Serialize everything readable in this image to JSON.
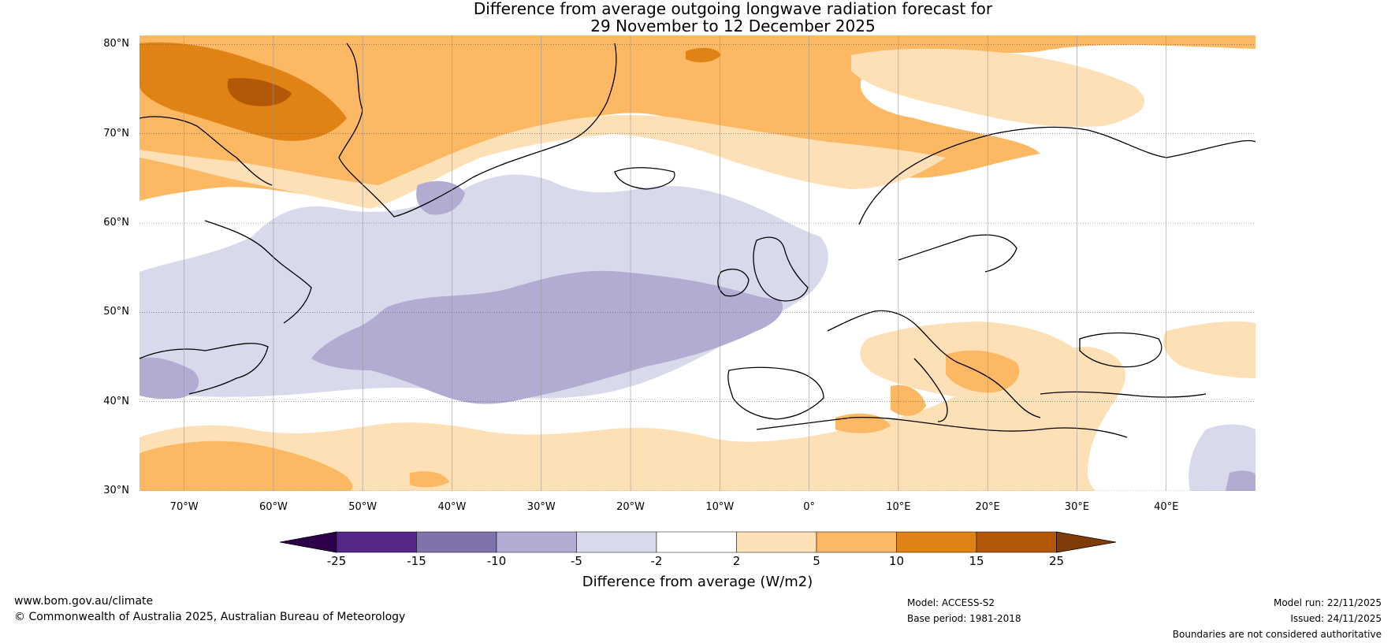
{
  "title": {
    "line1": "Difference from average outgoing longwave radiation forecast for",
    "line2": "29 November to 12 December 2025"
  },
  "latitude_labels": [
    "80°N",
    "70°N",
    "60°N",
    "50°N",
    "40°N",
    "30°N"
  ],
  "longitude_labels": [
    "70°W",
    "60°W",
    "50°W",
    "40°W",
    "30°W",
    "20°W",
    "10°W",
    "0°",
    "10°E",
    "20°E",
    "30°E",
    "40°E"
  ],
  "map_extent": {
    "lon_min": -75,
    "lon_max": 50,
    "lat_min": 30,
    "lat_max": 81
  },
  "anomaly_regions": [
    {
      "class": "10 to 15",
      "description": "Greenland interior / Baffin"
    },
    {
      "class": "5 to 10",
      "description": "Arctic Ocean, Greenland Sea, Barents Sea"
    },
    {
      "class": "2 to 5",
      "description": "Svalbard, subtropical Atlantic, Mediterranean, Balkans"
    },
    {
      "class": "-5 to -2",
      "description": "North Atlantic"
    },
    {
      "class": "-10 to -5",
      "description": "Central North Atlantic"
    }
  ],
  "colorbar": {
    "ticks": [
      "-25",
      "-15",
      "-10",
      "-5",
      "-2",
      "2",
      "5",
      "10",
      "15",
      "25"
    ],
    "bins": [
      {
        "range": "< -25",
        "color": "#2d004b"
      },
      {
        "range": "-25 to -15",
        "color": "#542788"
      },
      {
        "range": "-15 to -10",
        "color": "#8073ac"
      },
      {
        "range": "-10 to -5",
        "color": "#b2abd2"
      },
      {
        "range": "-5 to -2",
        "color": "#d8daeb"
      },
      {
        "range": "-2 to 2",
        "color": "#ffffff"
      },
      {
        "range": "2 to 5",
        "color": "#fee0b6"
      },
      {
        "range": "5 to 10",
        "color": "#fdb863"
      },
      {
        "range": "10 to 15",
        "color": "#e08214"
      },
      {
        "range": "15 to 25",
        "color": "#b35806"
      },
      {
        "range": "> 25",
        "color": "#7f3b08"
      }
    ],
    "label": "Difference from average (W/m2)"
  },
  "footer": {
    "website": "www.bom.gov.au/climate",
    "copyright": "© Commonwealth of Australia 2025, Australian Bureau of Meteorology",
    "model": "Model: ACCESS-S2",
    "base_period": "Base period: 1981-2018",
    "model_run": "Model run: 22/11/2025",
    "issued": "Issued: 24/11/2025",
    "disclaimer": "Boundaries are not considered authoritative"
  }
}
